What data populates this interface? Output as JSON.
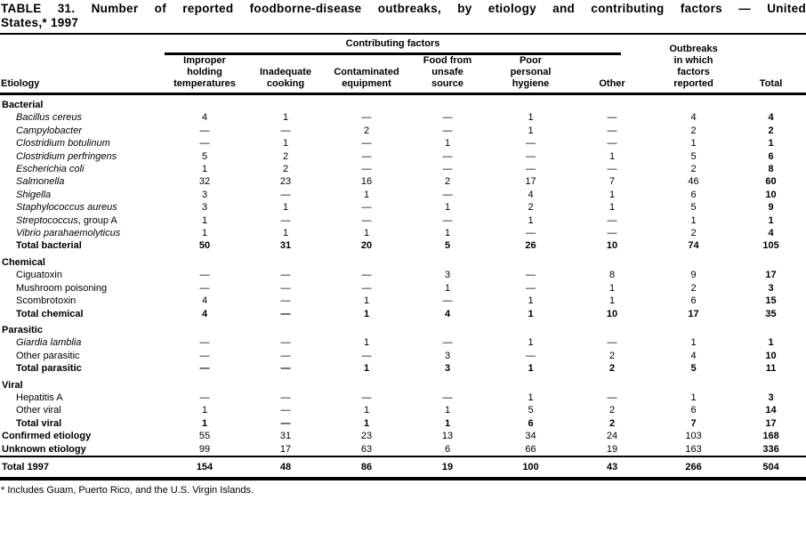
{
  "title": {
    "line1": "TABLE 31. Number of reported foodborne-disease outbreaks, by etiology and contributing factors — United",
    "line2": "States,* 1997"
  },
  "header": {
    "etiology": "Etiology",
    "contributing_factors": "Contributing factors",
    "columns": [
      [
        "Improper",
        "holding",
        "temperatures"
      ],
      [
        "Inadequate",
        "cooking"
      ],
      [
        "Contaminated",
        "equipment"
      ],
      [
        "Food from",
        "unsafe",
        "source"
      ],
      [
        "Poor",
        "personal",
        "hygiene"
      ],
      [
        "Other"
      ]
    ],
    "outbreaks_lines": [
      "Outbreaks",
      "in which",
      "factors",
      "reported"
    ],
    "total": "Total"
  },
  "sections": [
    {
      "name": "Bacterial",
      "rows": [
        {
          "label": "Bacillus cereus",
          "italic": true,
          "bold": false,
          "values": [
            "4",
            "1",
            "—",
            "—",
            "1",
            "—",
            "4",
            "4"
          ]
        },
        {
          "label": "Campylobacter",
          "italic": true,
          "bold": false,
          "values": [
            "—",
            "—",
            "2",
            "—",
            "1",
            "—",
            "2",
            "2"
          ]
        },
        {
          "label": "Clostridium botulinum",
          "italic": true,
          "bold": false,
          "values": [
            "—",
            "1",
            "—",
            "1",
            "—",
            "—",
            "1",
            "1"
          ]
        },
        {
          "label": "Clostridium perfringens",
          "italic": true,
          "bold": false,
          "values": [
            "5",
            "2",
            "—",
            "—",
            "—",
            "1",
            "5",
            "6"
          ]
        },
        {
          "label": "Escherichia coli",
          "italic": true,
          "bold": false,
          "values": [
            "1",
            "2",
            "—",
            "—",
            "—",
            "—",
            "2",
            "8"
          ]
        },
        {
          "label": "Salmonella",
          "italic": true,
          "bold": false,
          "values": [
            "32",
            "23",
            "16",
            "2",
            "17",
            "7",
            "46",
            "60"
          ]
        },
        {
          "label": "Shigella",
          "italic": true,
          "bold": false,
          "values": [
            "3",
            "—",
            "1",
            "—",
            "4",
            "1",
            "6",
            "10"
          ]
        },
        {
          "label": "Staphylococcus aureus",
          "italic": true,
          "bold": false,
          "values": [
            "3",
            "1",
            "—",
            "1",
            "2",
            "1",
            "5",
            "9"
          ]
        },
        {
          "label": "Streptococcus",
          "suffix": ", group A",
          "italic": true,
          "bold": false,
          "values": [
            "1",
            "—",
            "—",
            "—",
            "1",
            "—",
            "1",
            "1"
          ]
        },
        {
          "label": "Vibrio parahaemolyticus",
          "italic": true,
          "bold": false,
          "values": [
            "1",
            "1",
            "1",
            "1",
            "—",
            "—",
            "2",
            "4"
          ]
        },
        {
          "label": "Total bacterial",
          "italic": false,
          "bold": true,
          "values": [
            "50",
            "31",
            "20",
            "5",
            "26",
            "10",
            "74",
            "105"
          ]
        }
      ]
    },
    {
      "name": "Chemical",
      "rows": [
        {
          "label": "Ciguatoxin",
          "italic": false,
          "bold": false,
          "values": [
            "—",
            "—",
            "—",
            "3",
            "—",
            "8",
            "9",
            "17"
          ]
        },
        {
          "label": "Mushroom poisoning",
          "italic": false,
          "bold": false,
          "values": [
            "—",
            "—",
            "—",
            "1",
            "—",
            "1",
            "2",
            "3"
          ]
        },
        {
          "label": "Scombrotoxin",
          "italic": false,
          "bold": false,
          "values": [
            "4",
            "—",
            "1",
            "—",
            "1",
            "1",
            "6",
            "15"
          ]
        },
        {
          "label": "Total chemical",
          "italic": false,
          "bold": true,
          "values": [
            "4",
            "—",
            "1",
            "4",
            "1",
            "10",
            "17",
            "35"
          ]
        }
      ]
    },
    {
      "name": "Parasitic",
      "rows": [
        {
          "label": "Giardia lamblia",
          "italic": true,
          "bold": false,
          "values": [
            "—",
            "—",
            "1",
            "—",
            "1",
            "—",
            "1",
            "1"
          ]
        },
        {
          "label": "Other parasitic",
          "italic": false,
          "bold": false,
          "values": [
            "—",
            "—",
            "—",
            "3",
            "—",
            "2",
            "4",
            "10"
          ]
        },
        {
          "label": "Total parasitic",
          "italic": false,
          "bold": true,
          "values": [
            "—",
            "—",
            "1",
            "3",
            "1",
            "2",
            "5",
            "11"
          ]
        }
      ]
    },
    {
      "name": "Viral",
      "rows": [
        {
          "label": "Hepatitis A",
          "italic": false,
          "bold": false,
          "values": [
            "—",
            "—",
            "—",
            "—",
            "1",
            "—",
            "1",
            "3"
          ]
        },
        {
          "label": "Other viral",
          "italic": false,
          "bold": false,
          "values": [
            "1",
            "—",
            "1",
            "1",
            "5",
            "2",
            "6",
            "14"
          ]
        },
        {
          "label": "Total viral",
          "italic": false,
          "bold": true,
          "values": [
            "1",
            "—",
            "1",
            "1",
            "6",
            "2",
            "7",
            "17"
          ]
        }
      ]
    }
  ],
  "summary_rows": [
    {
      "label": "Confirmed etiology",
      "values": [
        "55",
        "31",
        "23",
        "13",
        "34",
        "24",
        "103",
        "168"
      ]
    },
    {
      "label": "Unknown etiology",
      "values": [
        "99",
        "17",
        "63",
        "6",
        "66",
        "19",
        "163",
        "336"
      ]
    }
  ],
  "total_row": {
    "label": "Total 1997",
    "values": [
      "154",
      "48",
      "86",
      "19",
      "100",
      "43",
      "266",
      "504"
    ]
  },
  "footnote": "* Includes Guam, Puerto Rico, and the U.S. Virgin Islands."
}
